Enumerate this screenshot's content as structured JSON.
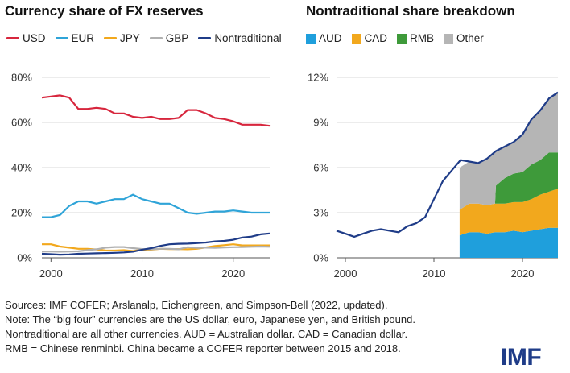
{
  "colors": {
    "USD": "#d7263d",
    "EUR": "#2fa4d8",
    "JPY": "#f2a81d",
    "GBP": "#b0b0b0",
    "Nontraditional": "#1f3c88",
    "AUD": "#1f9fdc",
    "CAD": "#f2a81d",
    "RMB": "#3e9a3a",
    "Other": "#b5b5b5"
  },
  "chart_data": [
    {
      "type": "line",
      "title": "Currency share of FX reserves",
      "xlim": [
        1999,
        2024
      ],
      "ylim": [
        0,
        80
      ],
      "y_ticks": [
        "0%",
        "20%",
        "40%",
        "60%",
        "80%"
      ],
      "x_ticks": [
        "2000",
        "2010",
        "2020"
      ],
      "grid": "horizontal",
      "legend": "top",
      "x": [
        1999,
        2000,
        2001,
        2002,
        2003,
        2004,
        2005,
        2006,
        2007,
        2008,
        2009,
        2010,
        2011,
        2012,
        2013,
        2014,
        2015,
        2016,
        2017,
        2018,
        2019,
        2020,
        2021,
        2022,
        2023,
        2024
      ],
      "series": [
        {
          "name": "USD",
          "values": [
            71,
            71.5,
            72,
            71,
            66,
            66,
            66.5,
            66,
            64,
            64,
            62.5,
            62,
            62.5,
            61.5,
            61.5,
            62,
            65.5,
            65.5,
            64,
            62,
            61.5,
            60.5,
            59,
            59,
            59,
            58.5
          ]
        },
        {
          "name": "EUR",
          "values": [
            18,
            18,
            19,
            23,
            25,
            25,
            24,
            25,
            26,
            26,
            28,
            26,
            25,
            24,
            24,
            22,
            20,
            19.5,
            20,
            20.5,
            20.5,
            21,
            20.5,
            20,
            20,
            20
          ]
        },
        {
          "name": "JPY",
          "values": [
            6,
            6,
            5,
            4.5,
            4,
            4,
            3.7,
            3.3,
            3.2,
            3.4,
            3,
            3.6,
            3.6,
            4,
            3.9,
            3.9,
            3.8,
            4,
            4.6,
            5.2,
            5.6,
            6,
            5.5,
            5.5,
            5.5,
            5.5
          ]
        },
        {
          "name": "GBP",
          "values": [
            2.8,
            2.8,
            2.7,
            2.8,
            2.9,
            3.4,
            3.8,
            4.5,
            4.8,
            4.8,
            4.3,
            3.9,
            3.8,
            4,
            4,
            3.8,
            4.7,
            4.4,
            4.5,
            4.4,
            4.6,
            4.7,
            4.8,
            4.9,
            5,
            4.9
          ]
        },
        {
          "name": "Nontraditional",
          "values": [
            1.8,
            1.6,
            1.4,
            1.5,
            1.8,
            1.9,
            2.0,
            2.1,
            2.2,
            2.4,
            2.7,
            3.6,
            4.3,
            5.3,
            6.0,
            6.2,
            6.3,
            6.5,
            6.8,
            7.3,
            7.5,
            8.0,
            9.0,
            9.4,
            10.4,
            10.8
          ]
        }
      ]
    },
    {
      "type": "area",
      "title": "Nontraditional share breakdown",
      "xlim": [
        1999,
        2024
      ],
      "ylim": [
        0,
        12
      ],
      "y_ticks": [
        "0%",
        "3%",
        "6%",
        "9%",
        "12%"
      ],
      "x_ticks": [
        "2000",
        "2010",
        "2020"
      ],
      "grid": "horizontal",
      "legend": "top",
      "total": {
        "x": [
          1999,
          2000,
          2001,
          2002,
          2003,
          2004,
          2005,
          2006,
          2007,
          2008,
          2009,
          2010,
          2011,
          2012,
          2013,
          2014,
          2015,
          2016,
          2017,
          2018,
          2019,
          2020,
          2021,
          2022,
          2023,
          2024
        ],
        "values": [
          1.8,
          1.6,
          1.4,
          1.6,
          1.8,
          1.9,
          1.8,
          1.7,
          2.1,
          2.3,
          2.7,
          3.9,
          5.1,
          5.8,
          6.5,
          6.4,
          6.3,
          6.6,
          7.1,
          7.4,
          7.7,
          8.2,
          9.2,
          9.8,
          10.6,
          11.0
        ]
      },
      "stack_x": [
        2012.9,
        2014,
        2015,
        2016,
        2016.9,
        2017,
        2018,
        2019,
        2020,
        2021,
        2022,
        2023,
        2024
      ],
      "series": [
        {
          "name": "AUD",
          "values": [
            1.5,
            1.7,
            1.7,
            1.6,
            1.7,
            1.7,
            1.7,
            1.8,
            1.7,
            1.8,
            1.9,
            2.0,
            2.0
          ]
        },
        {
          "name": "CAD",
          "values": [
            1.7,
            1.9,
            1.9,
            1.9,
            1.9,
            1.9,
            1.9,
            1.9,
            2.0,
            2.1,
            2.3,
            2.4,
            2.6
          ]
        },
        {
          "name": "RMB",
          "values": [
            0,
            0,
            0,
            0,
            0,
            1.2,
            1.7,
            1.9,
            2.0,
            2.3,
            2.3,
            2.6,
            2.4
          ]
        },
        {
          "name": "Other",
          "values": [
            2.8,
            2.8,
            2.7,
            3.1,
            3.5,
            2.3,
            2.1,
            2.1,
            2.5,
            3.0,
            3.3,
            3.6,
            4.0
          ]
        }
      ]
    }
  ],
  "footer": {
    "lines": [
      "Sources: IMF COFER; Arslanalp, Eichengreen, and Simpson-Bell (2022, updated).",
      "Note: The “big four” currencies are the US dollar, euro, Japanese yen, and British pound.",
      "Nontraditional are all other currencies. AUD = Australian dollar. CAD = Canadian dollar.",
      "RMB = Chinese renminbi. China became a COFER reporter between 2015 and 2018."
    ],
    "logo": "IMF"
  }
}
